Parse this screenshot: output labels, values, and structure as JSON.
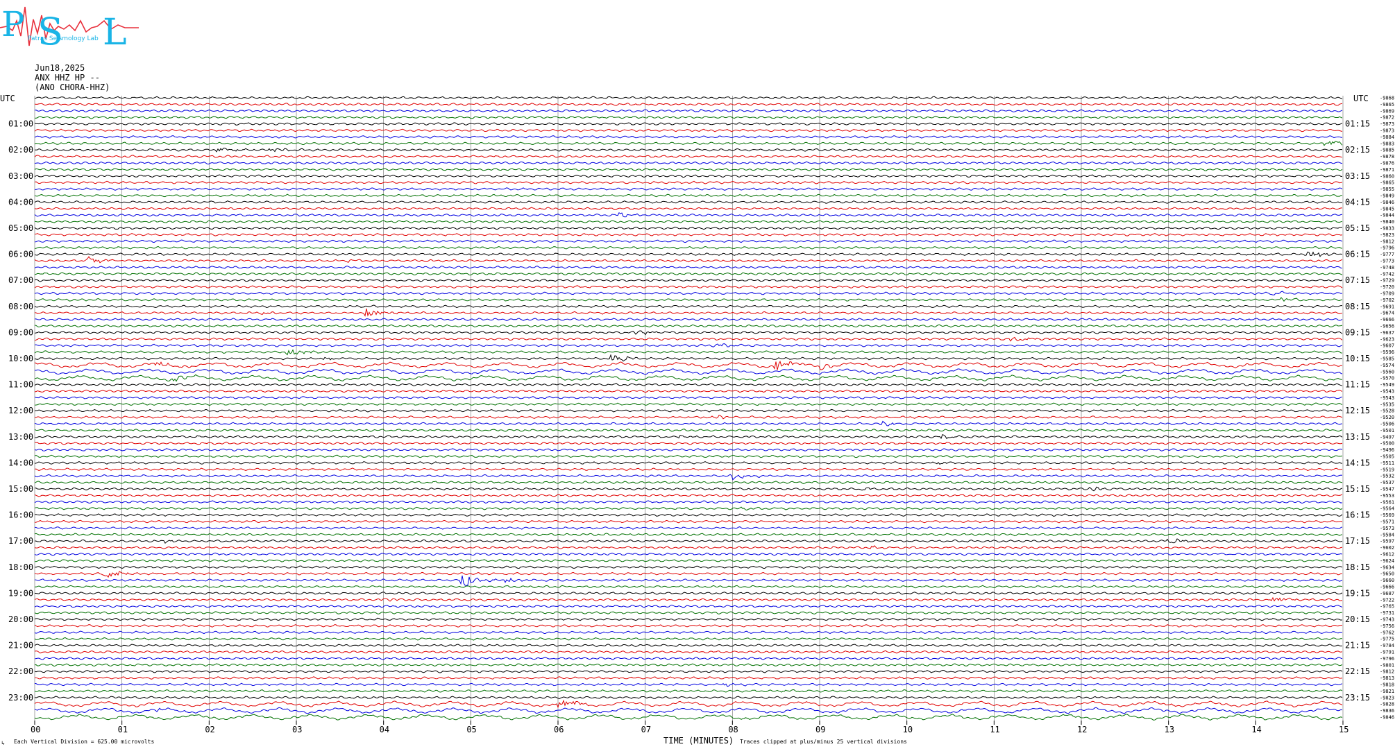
{
  "header": {
    "date": "Jun18,2025",
    "station": "ANX HHZ HP --",
    "station_alt": "(ANO CHORA-HHZ)"
  },
  "logo": {
    "letters": [
      "P",
      "S",
      "L"
    ],
    "text": "Patras Seismology Lab",
    "colors": {
      "letters": "#19b4e6",
      "trace": "#e8303c"
    }
  },
  "colors": {
    "trace_cycle": [
      "#000000",
      "#e00000",
      "#0000e0",
      "#007000"
    ],
    "grid": "#808080"
  },
  "chart_data": {
    "type": "line",
    "xlabel": "TIME (MINUTES)",
    "x_ticks": [
      "00",
      "01",
      "02",
      "03",
      "04",
      "05",
      "06",
      "07",
      "08",
      "09",
      "10",
      "11",
      "12",
      "13",
      "14",
      "15"
    ],
    "xlim": [
      0,
      15
    ],
    "left_axis_title": "UTC",
    "right_axis_title": "UTC",
    "left_hour_labels": [
      "01:00",
      "02:00",
      "03:00",
      "04:00",
      "05:00",
      "06:00",
      "07:00",
      "08:00",
      "09:00",
      "10:00",
      "11:00",
      "12:00",
      "13:00",
      "14:00",
      "15:00",
      "16:00",
      "17:00",
      "18:00",
      "19:00",
      "20:00",
      "21:00",
      "22:00",
      "23:00"
    ],
    "right_hour_labels": [
      "01:15",
      "02:15",
      "03:15",
      "04:15",
      "05:15",
      "06:15",
      "07:15",
      "08:15",
      "09:15",
      "10:15",
      "11:15",
      "12:15",
      "13:15",
      "14:15",
      "15:15",
      "16:15",
      "17:15",
      "18:15",
      "19:15",
      "20:15",
      "21:15",
      "22:15",
      "23:15"
    ],
    "trace_count": 96,
    "trace_minutes": 15,
    "right_values": [
      "-9868",
      "-9865",
      "-9869",
      "-9872",
      "-9873",
      "-9873",
      "-9884",
      "-9883",
      "-9885",
      "-9878",
      "-9876",
      "-9871",
      "-9860",
      "-9865",
      "-9855",
      "-9849",
      "-9846",
      "-9845",
      "-9844",
      "-9840",
      "-9833",
      "-9823",
      "-9812",
      "-9796",
      "-9777",
      "-9773",
      "-9748",
      "-9742",
      "-9729",
      "-9720",
      "-9709",
      "-9702",
      "-9691",
      "-9674",
      "-9666",
      "-9656",
      "-9637",
      "-9623",
      "-9607",
      "-9596",
      "-9585",
      "-9574",
      "-9560",
      "-9570",
      "-9549",
      "-9543",
      "-9543",
      "-9535",
      "-9528",
      "-9520",
      "-9506",
      "-9501",
      "-9497",
      "-9500",
      "-9496",
      "-9505",
      "-9511",
      "-9519",
      "-9532",
      "-9537",
      "-9547",
      "-9553",
      "-9561",
      "-9564",
      "-9569",
      "-9571",
      "-9573",
      "-9584",
      "-9597",
      "-9602",
      "-9612",
      "-9624",
      "-9634",
      "-9650",
      "-9660",
      "-9666",
      "-9687",
      "-9722",
      "-9765",
      "-9731",
      "-9743",
      "-9756",
      "-9762",
      "-9775",
      "-9784",
      "-9791",
      "-9796",
      "-9801",
      "-9812",
      "-9813",
      "-9818",
      "-9821",
      "-9823",
      "-9828",
      "-9836",
      "-9846"
    ],
    "events": [
      {
        "trace": 2,
        "minute": 7.5,
        "amp": 3
      },
      {
        "trace": 7,
        "minute": 14.8,
        "amp": 6
      },
      {
        "trace": 8,
        "minute": 2.1,
        "amp": 4
      },
      {
        "trace": 8,
        "minute": 2.7,
        "amp": 3
      },
      {
        "trace": 18,
        "minute": 6.7,
        "amp": 3
      },
      {
        "trace": 24,
        "minute": 14.6,
        "amp": 6
      },
      {
        "trace": 24,
        "minute": 13.9,
        "amp": 3
      },
      {
        "trace": 25,
        "minute": 0.6,
        "amp": 7
      },
      {
        "trace": 25,
        "minute": 3.6,
        "amp": 2
      },
      {
        "trace": 30,
        "minute": 14.2,
        "amp": 3
      },
      {
        "trace": 31,
        "minute": 14.3,
        "amp": 5
      },
      {
        "trace": 33,
        "minute": 3.8,
        "amp": 7
      },
      {
        "trace": 33,
        "minute": 2.6,
        "amp": 2
      },
      {
        "trace": 36,
        "minute": 6.9,
        "amp": 5
      },
      {
        "trace": 37,
        "minute": 11.2,
        "amp": 4
      },
      {
        "trace": 38,
        "minute": 7.8,
        "amp": 3
      },
      {
        "trace": 39,
        "minute": 2.9,
        "amp": 6
      },
      {
        "trace": 40,
        "minute": 6.6,
        "amp": 8
      },
      {
        "trace": 40,
        "minute": 3.3,
        "amp": 3
      },
      {
        "trace": 41,
        "minute": 8.5,
        "amp": 8
      },
      {
        "trace": 41,
        "minute": 1.4,
        "amp": 4
      },
      {
        "trace": 41,
        "minute": 9.0,
        "amp": 4
      },
      {
        "trace": 43,
        "minute": 1.6,
        "amp": 4
      },
      {
        "trace": 49,
        "minute": 7.8,
        "amp": 3
      },
      {
        "trace": 50,
        "minute": 9.7,
        "amp": 3
      },
      {
        "trace": 52,
        "minute": 7.4,
        "amp": 2
      },
      {
        "trace": 52,
        "minute": 10.4,
        "amp": 3
      },
      {
        "trace": 56,
        "minute": 10.3,
        "amp": 3
      },
      {
        "trace": 58,
        "minute": 8.0,
        "amp": 6
      },
      {
        "trace": 60,
        "minute": 12.1,
        "amp": 3
      },
      {
        "trace": 60,
        "minute": 9.4,
        "amp": 2
      },
      {
        "trace": 63,
        "minute": 8.1,
        "amp": 2
      },
      {
        "trace": 68,
        "minute": 13.0,
        "amp": 4
      },
      {
        "trace": 68,
        "minute": 1.5,
        "amp": 2
      },
      {
        "trace": 69,
        "minute": 9.6,
        "amp": 2
      },
      {
        "trace": 73,
        "minute": 0.8,
        "amp": 7
      },
      {
        "trace": 74,
        "minute": 4.9,
        "amp": 10
      },
      {
        "trace": 74,
        "minute": 5.4,
        "amp": 3
      },
      {
        "trace": 77,
        "minute": 14.2,
        "amp": 5
      },
      {
        "trace": 77,
        "minute": 4.0,
        "amp": 2
      },
      {
        "trace": 90,
        "minute": 7.9,
        "amp": 2
      },
      {
        "trace": 91,
        "minute": 8.6,
        "amp": 2
      },
      {
        "trace": 93,
        "minute": 6.0,
        "amp": 9
      },
      {
        "trace": 94,
        "minute": 1.4,
        "amp": 3
      }
    ]
  },
  "footer": {
    "division_note": "Each Vertical Division =  625.00 microvolts",
    "clip_note": "Traces clipped at plus/minus 25 vertical divisions",
    "corner_mark": "↳"
  }
}
